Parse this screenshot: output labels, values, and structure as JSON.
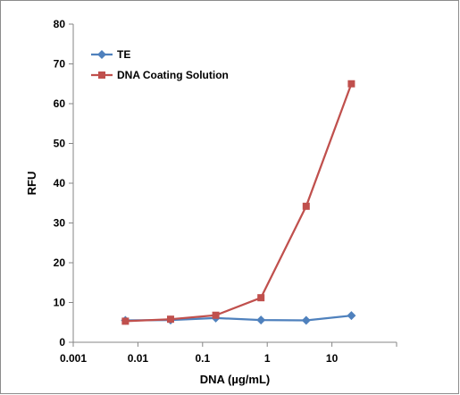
{
  "chart_data": {
    "type": "line",
    "title": "",
    "xlabel": "DNA (µg/mL)",
    "ylabel": "RFU",
    "x_scale": "log",
    "xlim": [
      0.001,
      100
    ],
    "ylim": [
      0,
      80
    ],
    "x_ticks": [
      0.001,
      0.01,
      0.1,
      1,
      10
    ],
    "x_tick_labels": [
      "0.001",
      "0.01",
      "0.1",
      "1",
      "10"
    ],
    "y_ticks": [
      0,
      10,
      20,
      30,
      40,
      50,
      60,
      70,
      80
    ],
    "y_tick_labels": [
      "0",
      "10",
      "20",
      "30",
      "40",
      "50",
      "60",
      "70",
      "80"
    ],
    "grid": false,
    "legend_position": "top-left",
    "series": [
      {
        "name": "TE",
        "color": "#4F81BD",
        "marker": "diamond",
        "x": [
          0.0064,
          0.032,
          0.16,
          0.8,
          4,
          20
        ],
        "y": [
          5.5,
          5.6,
          6.1,
          5.6,
          5.5,
          6.7
        ]
      },
      {
        "name": "DNA Coating Solution",
        "color": "#C0504D",
        "marker": "square",
        "x": [
          0.0064,
          0.032,
          0.16,
          0.8,
          4,
          20
        ],
        "y": [
          5.3,
          5.8,
          6.8,
          11.2,
          34.2,
          65.0
        ]
      }
    ]
  }
}
